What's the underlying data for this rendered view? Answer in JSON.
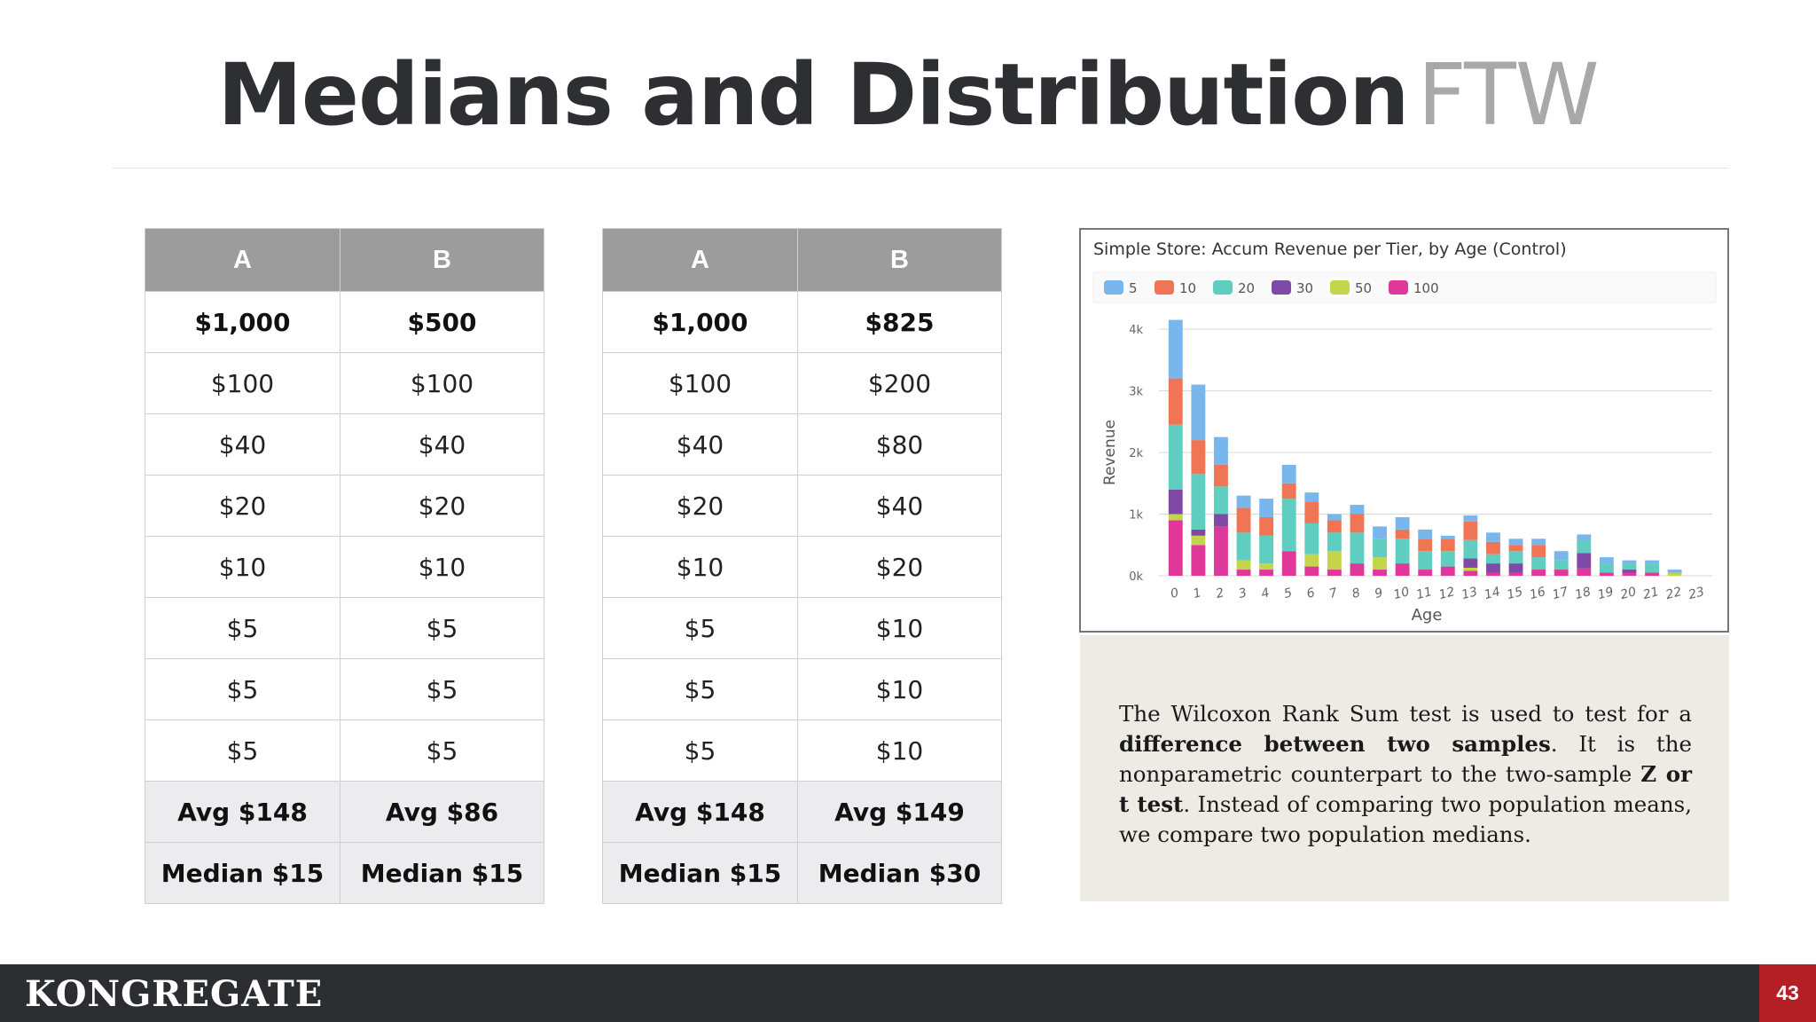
{
  "slide": {
    "title_main": "Medians and Distribution",
    "title_accent": "FTW"
  },
  "table_left": {
    "headers": [
      "A",
      "B"
    ],
    "rows": [
      [
        "$1,000",
        "$500"
      ],
      [
        "$100",
        "$100"
      ],
      [
        "$40",
        "$40"
      ],
      [
        "$20",
        "$20"
      ],
      [
        "$10",
        "$10"
      ],
      [
        "$5",
        "$5"
      ],
      [
        "$5",
        "$5"
      ],
      [
        "$5",
        "$5"
      ]
    ],
    "avg": [
      "Avg  $148",
      "Avg $86"
    ],
    "median": [
      "Median $15",
      "Median $15"
    ]
  },
  "table_right": {
    "headers": [
      "A",
      "B"
    ],
    "rows": [
      [
        "$1,000",
        "$825"
      ],
      [
        "$100",
        "$200"
      ],
      [
        "$40",
        "$80"
      ],
      [
        "$20",
        "$40"
      ],
      [
        "$10",
        "$20"
      ],
      [
        "$5",
        "$10"
      ],
      [
        "$5",
        "$10"
      ],
      [
        "$5",
        "$10"
      ]
    ],
    "avg": [
      "Avg  $148",
      "Avg $149"
    ],
    "median": [
      "Median $15",
      "Median $30"
    ]
  },
  "chart_data": {
    "type": "bar",
    "title": "Simple Store: Accum Revenue per Tier, by Age (Control)",
    "xlabel": "Age",
    "ylabel": "Revenue",
    "ylim": [
      0,
      4000
    ],
    "yticks": [
      "0k",
      "1k",
      "2k",
      "3k",
      "4k"
    ],
    "yticks_values": [
      0,
      1000,
      2000,
      3000,
      4000
    ],
    "stacked": true,
    "legend_position": "top",
    "categories": [
      "0",
      "1",
      "2",
      "3",
      "4",
      "5",
      "6",
      "7",
      "8",
      "9",
      "10",
      "11",
      "12",
      "13",
      "14",
      "15",
      "16",
      "17",
      "18",
      "19",
      "20",
      "21",
      "22",
      "23"
    ],
    "series": [
      {
        "name": "100",
        "color": "#e0379a",
        "values": [
          900,
          500,
          800,
          100,
          100,
          400,
          150,
          100,
          200,
          100,
          200,
          100,
          150,
          80,
          50,
          50,
          100,
          100,
          120,
          50,
          50,
          50,
          0,
          0
        ]
      },
      {
        "name": "50",
        "color": "#c5d54a",
        "values": [
          100,
          150,
          0,
          150,
          100,
          0,
          200,
          300,
          0,
          200,
          0,
          0,
          0,
          50,
          0,
          0,
          0,
          0,
          0,
          0,
          0,
          0,
          50,
          0
        ]
      },
      {
        "name": "30",
        "color": "#7e4aa6",
        "values": [
          400,
          100,
          200,
          0,
          0,
          0,
          0,
          0,
          0,
          0,
          0,
          0,
          0,
          150,
          150,
          150,
          0,
          0,
          250,
          0,
          50,
          0,
          0,
          0
        ]
      },
      {
        "name": "20",
        "color": "#5fcdbf",
        "values": [
          1050,
          900,
          450,
          450,
          450,
          850,
          500,
          300,
          500,
          300,
          400,
          300,
          250,
          300,
          150,
          200,
          200,
          150,
          200,
          150,
          100,
          150,
          0,
          0
        ]
      },
      {
        "name": "10",
        "color": "#f07555",
        "values": [
          750,
          550,
          350,
          400,
          300,
          250,
          350,
          200,
          300,
          0,
          150,
          200,
          200,
          300,
          200,
          100,
          200,
          0,
          0,
          0,
          0,
          0,
          0,
          0
        ]
      },
      {
        "name": "5",
        "color": "#78b6ec",
        "values": [
          950,
          900,
          450,
          200,
          300,
          300,
          150,
          100,
          150,
          200,
          200,
          150,
          50,
          100,
          150,
          100,
          100,
          150,
          100,
          100,
          50,
          50,
          50,
          0
        ]
      }
    ]
  },
  "quote": {
    "p1": "The Wilcoxon Rank Sum test is used to test for a",
    "b1": "difference between two samples",
    "p2": ". It is the nonparametric counterpart to the two-sample",
    "b2": "Z or t test",
    "p3": ". Instead of comparing two population means, we compare two population medians."
  },
  "footer": {
    "logo": "KONGREGATE",
    "page_number": "43"
  }
}
